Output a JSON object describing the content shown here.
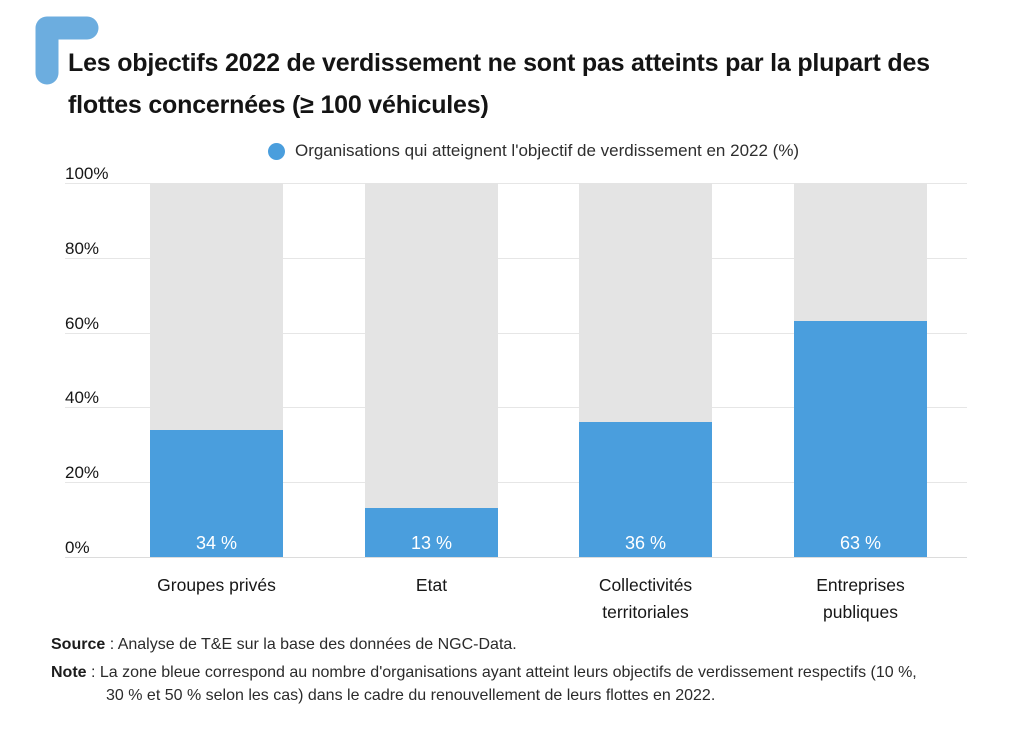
{
  "brand": {
    "corner_color": "#6caddf"
  },
  "title_lines": [
    "Les objectifs 2022 de verdissement ne sont pas atteints par la plupart des",
    "flottes concernées (≥ 100 véhicules)"
  ],
  "legend": {
    "marker_color": "#4a9edd",
    "label": "Organisations qui atteignent l'objectif de verdissement en 2022 (%)"
  },
  "chart_data": {
    "type": "bar",
    "title": "Les objectifs 2022 de verdissement ne sont pas atteints par la plupart des flottes concernées (≥ 100 véhicules)",
    "categories": [
      "Groupes privés",
      "Etat",
      "Collectivités territoriales",
      "Entreprises publiques"
    ],
    "values": [
      34,
      13,
      36,
      63
    ],
    "value_labels": [
      "34 %",
      "13 %",
      "36 %",
      "63 %"
    ],
    "series_name": "Organisations qui atteignent l'objectif de verdissement en 2022 (%)",
    "ylim": [
      0,
      100
    ],
    "ytick_labels": [
      "100%",
      "80%",
      "60%",
      "40%",
      "20%",
      "0%"
    ],
    "ytick_values": [
      100,
      80,
      60,
      40,
      20,
      0
    ],
    "grid": true,
    "legend_position": "top",
    "bar_color": "#4a9edd",
    "track_color": "#e4e4e4",
    "value_label_color": "#ffffff"
  },
  "footer": {
    "source_label": "Source",
    "source_text": " : Analyse de T&E sur la base des données de NGC-Data.",
    "note_label": "Note",
    "note_line1": " : La zone bleue correspond au nombre d'organisations ayant atteint leurs objectifs de verdissement respectifs (10 %,",
    "note_line2": "30 % et 50 % selon les cas) dans le cadre du renouvellement de leurs flottes en 2022."
  }
}
